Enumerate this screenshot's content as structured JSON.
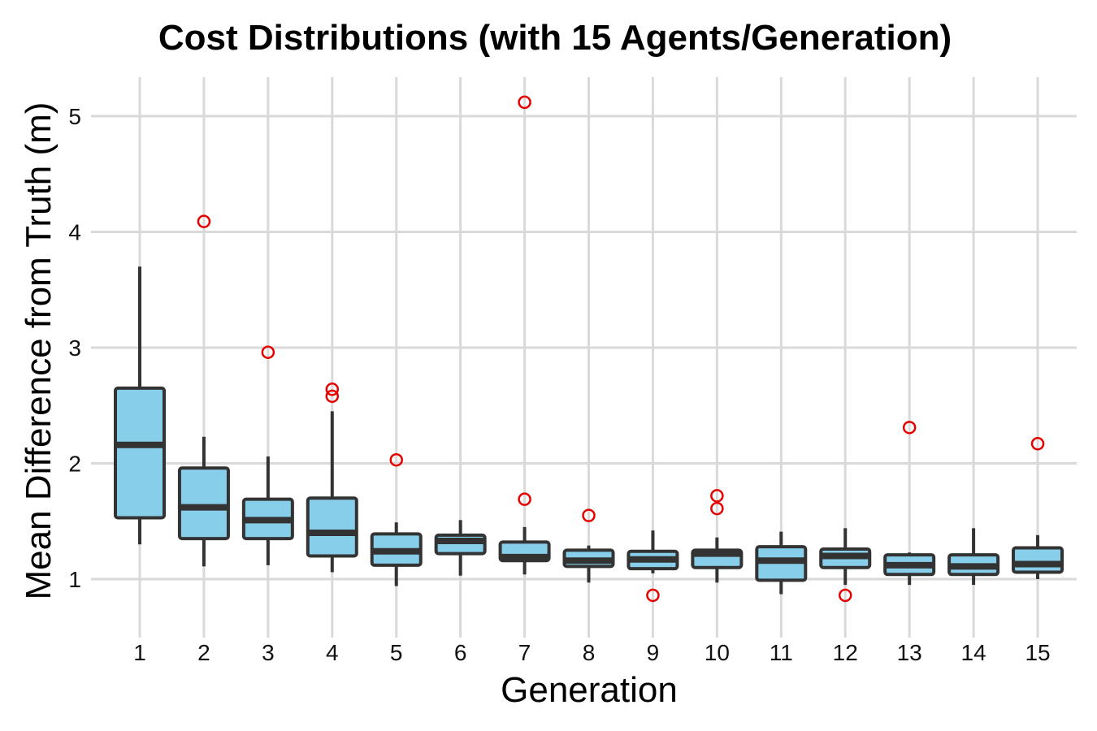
{
  "chart_data": {
    "type": "boxplot",
    "title": "Cost Distributions (with 15 Agents/Generation)",
    "xlabel": "Generation",
    "ylabel": "Mean Difference from Truth (m)",
    "ylim": [
      0.6,
      5.35
    ],
    "yticks": [
      1,
      2,
      3,
      4,
      5
    ],
    "categories": [
      "1",
      "2",
      "3",
      "4",
      "5",
      "6",
      "7",
      "8",
      "9",
      "10",
      "11",
      "12",
      "13",
      "14",
      "15"
    ],
    "colors": {
      "box_fill": "#87ceeb",
      "box_stroke": "#333333",
      "outlier": "#e60000",
      "grid": "#d9d9d9"
    },
    "boxes": [
      {
        "category": "1",
        "whisker_low": 1.3,
        "q1": 1.53,
        "median": 2.16,
        "q3": 2.65,
        "whisker_high": 3.7,
        "outliers": []
      },
      {
        "category": "2",
        "whisker_low": 1.11,
        "q1": 1.35,
        "median": 1.62,
        "q3": 1.96,
        "whisker_high": 2.23,
        "outliers": [
          4.09
        ]
      },
      {
        "category": "3",
        "whisker_low": 1.12,
        "q1": 1.35,
        "median": 1.51,
        "q3": 1.69,
        "whisker_high": 2.06,
        "outliers": [
          2.96
        ]
      },
      {
        "category": "4",
        "whisker_low": 1.06,
        "q1": 1.2,
        "median": 1.4,
        "q3": 1.7,
        "whisker_high": 2.45,
        "outliers": [
          2.64,
          2.58
        ]
      },
      {
        "category": "5",
        "whisker_low": 0.94,
        "q1": 1.12,
        "median": 1.24,
        "q3": 1.39,
        "whisker_high": 1.49,
        "outliers": [
          2.03
        ]
      },
      {
        "category": "6",
        "whisker_low": 1.03,
        "q1": 1.22,
        "median": 1.33,
        "q3": 1.38,
        "whisker_high": 1.51,
        "outliers": []
      },
      {
        "category": "7",
        "whisker_low": 1.04,
        "q1": 1.16,
        "median": 1.19,
        "q3": 1.32,
        "whisker_high": 1.45,
        "outliers": [
          5.12,
          1.69
        ]
      },
      {
        "category": "8",
        "whisker_low": 0.97,
        "q1": 1.11,
        "median": 1.16,
        "q3": 1.25,
        "whisker_high": 1.29,
        "outliers": [
          1.55
        ]
      },
      {
        "category": "9",
        "whisker_low": 1.05,
        "q1": 1.09,
        "median": 1.17,
        "q3": 1.24,
        "whisker_high": 1.42,
        "outliers": [
          0.86
        ]
      },
      {
        "category": "10",
        "whisker_low": 0.97,
        "q1": 1.1,
        "median": 1.22,
        "q3": 1.25,
        "whisker_high": 1.36,
        "outliers": [
          1.72,
          1.61
        ]
      },
      {
        "category": "11",
        "whisker_low": 0.87,
        "q1": 0.99,
        "median": 1.16,
        "q3": 1.28,
        "whisker_high": 1.41,
        "outliers": []
      },
      {
        "category": "12",
        "whisker_low": 0.95,
        "q1": 1.1,
        "median": 1.2,
        "q3": 1.26,
        "whisker_high": 1.44,
        "outliers": [
          0.86
        ]
      },
      {
        "category": "13",
        "whisker_low": 0.95,
        "q1": 1.04,
        "median": 1.12,
        "q3": 1.21,
        "whisker_high": 1.23,
        "outliers": [
          2.31
        ]
      },
      {
        "category": "14",
        "whisker_low": 0.95,
        "q1": 1.04,
        "median": 1.11,
        "q3": 1.21,
        "whisker_high": 1.44,
        "outliers": []
      },
      {
        "category": "15",
        "whisker_low": 1.0,
        "q1": 1.06,
        "median": 1.13,
        "q3": 1.27,
        "whisker_high": 1.38,
        "outliers": [
          2.17
        ]
      }
    ]
  }
}
